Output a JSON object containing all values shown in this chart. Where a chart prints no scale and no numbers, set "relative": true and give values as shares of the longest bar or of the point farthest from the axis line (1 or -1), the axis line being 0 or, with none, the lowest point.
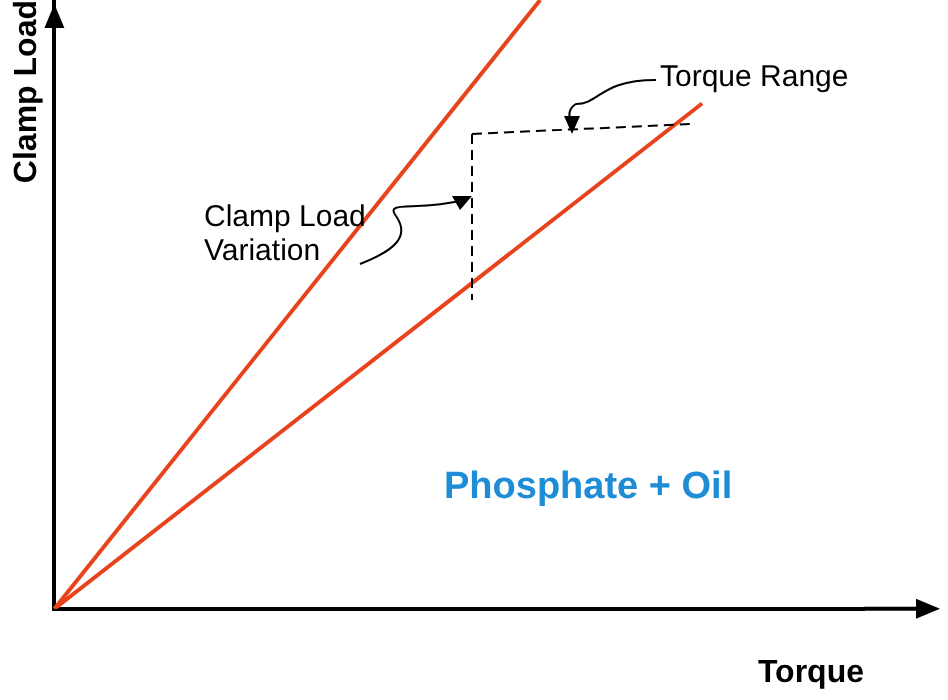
{
  "chart_data": {
    "type": "line",
    "relative": true,
    "xlabel": "Torque",
    "ylabel": "Clamp Load",
    "categories": [
      null,
      null,
      null,
      null,
      null,
      null
    ],
    "series": [
      {
        "color": "#e8431c",
        "values": [
          0,
          null,
          null,
          1,
          null,
          null
        ]
      },
      {
        "color": "#e8431c",
        "values": [
          0,
          null,
          null,
          null,
          0.83,
          null
        ]
      }
    ],
    "annotations": [
      "Clamp Load Variation",
      "Torque Range",
      "Phosphate + Oil"
    ],
    "grid": false,
    "legend": false,
    "marker": "none",
    "line_style": "solid"
  }
}
